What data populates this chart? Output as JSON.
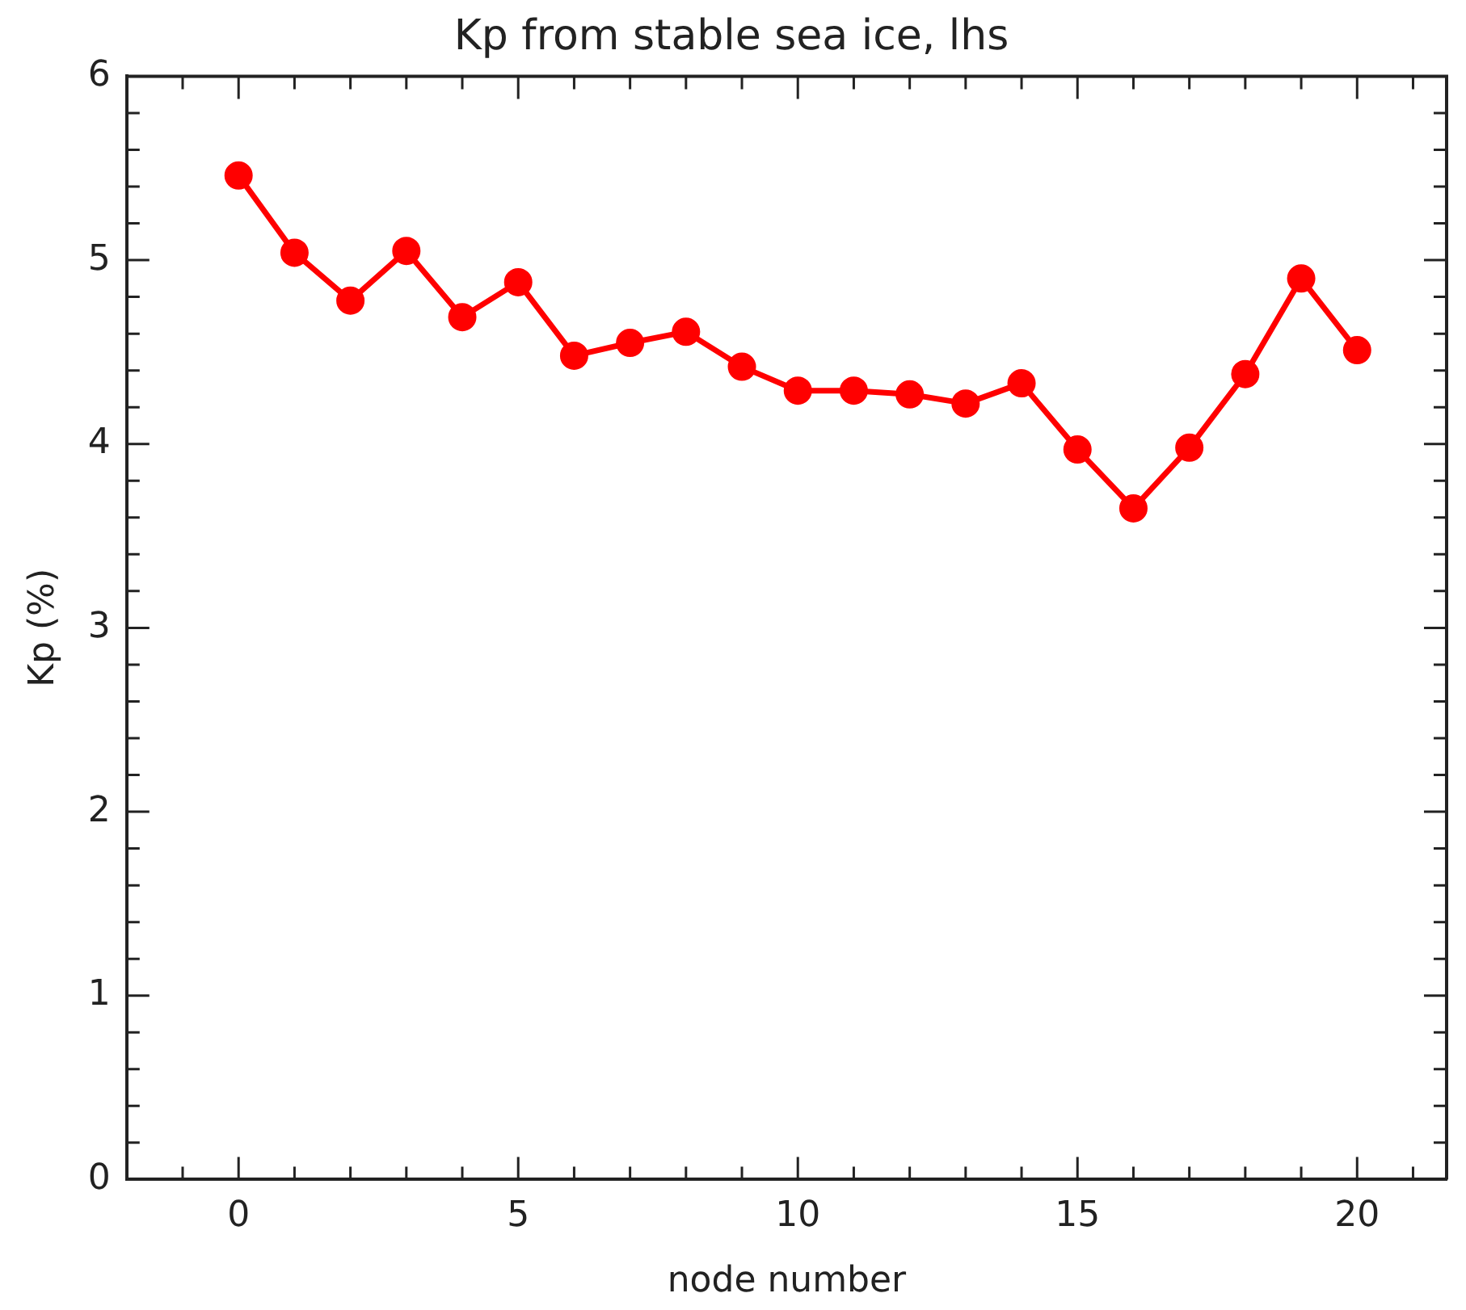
{
  "chart_data": {
    "type": "line",
    "title": "Kp from stable sea ice, lhs",
    "xlabel": "node number",
    "ylabel": "Kp (%)",
    "x": [
      0,
      1,
      2,
      3,
      4,
      5,
      6,
      7,
      8,
      9,
      10,
      11,
      12,
      13,
      14,
      15,
      16,
      17,
      18,
      19,
      20
    ],
    "series": [
      {
        "color": "#ff0000",
        "values": [
          5.46,
          5.04,
          4.78,
          5.05,
          4.69,
          4.88,
          4.48,
          4.55,
          4.61,
          4.42,
          4.29,
          4.29,
          4.27,
          4.22,
          4.33,
          3.97,
          3.65,
          3.98,
          4.38,
          4.9,
          4.51
        ]
      }
    ],
    "xlim": [
      -2,
      21.6
    ],
    "xticks": [
      {
        "value": -1,
        "label": null
      },
      0,
      {
        "value": 1,
        "label": null
      },
      {
        "value": 2,
        "label": null
      },
      {
        "value": 3,
        "label": null
      },
      {
        "value": 4,
        "label": null
      },
      5,
      {
        "value": 6,
        "label": null
      },
      {
        "value": 7,
        "label": null
      },
      {
        "value": 8,
        "label": null
      },
      {
        "value": 9,
        "label": null
      },
      10,
      {
        "value": 11,
        "label": null
      },
      {
        "value": 12,
        "label": null
      },
      {
        "value": 13,
        "label": null
      },
      {
        "value": 14,
        "label": null
      },
      15,
      {
        "value": 16,
        "label": null
      },
      {
        "value": 17,
        "label": null
      },
      {
        "value": 18,
        "label": null
      },
      {
        "value": 19,
        "label": null
      },
      20,
      {
        "value": 21,
        "label": null
      }
    ],
    "ylim": [
      0,
      6
    ],
    "yticks": [
      0,
      {
        "value": 0.2,
        "label": null
      },
      {
        "value": 0.4,
        "label": null
      },
      {
        "value": 0.6,
        "label": null
      },
      {
        "value": 0.8,
        "label": null
      },
      1,
      {
        "value": 1.2,
        "label": null
      },
      {
        "value": 1.4,
        "label": null
      },
      {
        "value": 1.6,
        "label": null
      },
      {
        "value": 1.8,
        "label": null
      },
      2,
      {
        "value": 2.2,
        "label": null
      },
      {
        "value": 2.4,
        "label": null
      },
      {
        "value": 2.6,
        "label": null
      },
      {
        "value": 2.8,
        "label": null
      },
      3,
      {
        "value": 3.2,
        "label": null
      },
      {
        "value": 3.4,
        "label": null
      },
      {
        "value": 3.6,
        "label": null
      },
      {
        "value": 3.8,
        "label": null
      },
      4,
      {
        "value": 4.2,
        "label": null
      },
      {
        "value": 4.4,
        "label": null
      },
      {
        "value": 4.6,
        "label": null
      },
      {
        "value": 4.8,
        "label": null
      },
      5,
      {
        "value": 5.2,
        "label": null
      },
      {
        "value": 5.4,
        "label": null
      },
      {
        "value": 5.6,
        "label": null
      },
      {
        "value": 5.8,
        "label": null
      },
      6
    ],
    "grid": false,
    "legend": false,
    "marker": "circle",
    "line_style": "solid"
  }
}
